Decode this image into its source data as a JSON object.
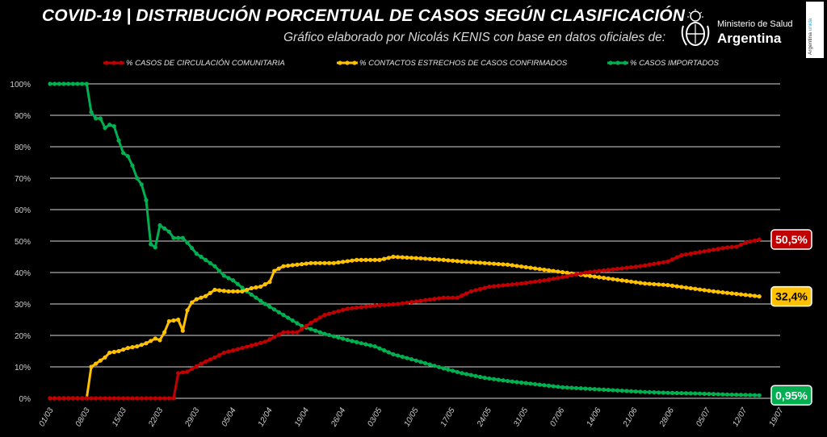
{
  "header": {
    "title": "COVID-19  |  DISTRIBUCIÓN PORCENTUAL DE CASOS SEGÚN CLASIFICACIÓN",
    "subtitle": "Gráfico elaborado por Nicolás KENIS con base en datos oficiales de:"
  },
  "logo": {
    "ministry": "Ministerio de Salud",
    "country": "Argentina",
    "icon": "coat-of-arms-icon"
  },
  "side_tag": {
    "text": "Argentina ",
    "highlight": "unida"
  },
  "colors": {
    "red": "#c00000",
    "yellow": "#ffc000",
    "green": "#00b050",
    "grid": "#d9d9d9"
  },
  "chart_data": {
    "type": "line",
    "x_ticks": [
      "01/03",
      "08/03",
      "15/03",
      "22/03",
      "29/03",
      "05/04",
      "12/04",
      "19/04",
      "26/04",
      "03/05",
      "10/05",
      "17/05",
      "24/05",
      "31/05",
      "07/06",
      "14/06",
      "21/06",
      "28/06",
      "05/07",
      "12/07",
      "19/07"
    ],
    "y_ticks": [
      "0%",
      "10%",
      "20%",
      "30%",
      "40%",
      "50%",
      "60%",
      "70%",
      "80%",
      "90%",
      "100%"
    ],
    "ylim": [
      0,
      100
    ],
    "grid": true,
    "legend_position": "top",
    "series": [
      {
        "name": "% CASOS DE CIRCULACIÓN COMUNITARIA",
        "color": "#c00000",
        "end_label": "50,5%",
        "keyframes": [
          [
            0,
            0
          ],
          [
            27,
            0
          ],
          [
            28,
            8
          ],
          [
            30,
            8.5
          ],
          [
            33,
            11
          ],
          [
            36,
            13
          ],
          [
            38,
            14.5
          ],
          [
            42,
            16
          ],
          [
            47,
            18
          ],
          [
            51,
            21
          ],
          [
            54,
            21
          ],
          [
            57,
            24
          ],
          [
            60,
            26.5
          ],
          [
            65,
            28.5
          ],
          [
            71,
            29.5
          ],
          [
            76,
            30
          ],
          [
            81,
            31
          ],
          [
            86,
            32
          ],
          [
            89,
            32
          ],
          [
            92,
            34
          ],
          [
            96,
            35.5
          ],
          [
            103,
            36.5
          ],
          [
            108,
            37.5
          ],
          [
            113,
            38.8
          ],
          [
            117,
            40
          ],
          [
            123,
            41
          ],
          [
            129,
            42
          ],
          [
            135,
            43.5
          ],
          [
            138,
            45.5
          ],
          [
            144,
            47
          ],
          [
            148,
            48
          ],
          [
            150,
            48.2
          ],
          [
            152,
            49.5
          ],
          [
            155,
            50.5
          ]
        ]
      },
      {
        "name": "% CONTACTOS ESTRECHOS DE CASOS CONFIRMADOS",
        "color": "#ffc000",
        "end_label": "32,4%",
        "keyframes": [
          [
            0,
            0
          ],
          [
            8,
            0
          ],
          [
            9,
            10
          ],
          [
            10,
            11
          ],
          [
            11,
            12
          ],
          [
            12,
            13
          ],
          [
            13,
            14.5
          ],
          [
            15,
            15
          ],
          [
            17,
            16
          ],
          [
            19,
            16.5
          ],
          [
            21,
            17.5
          ],
          [
            23,
            19
          ],
          [
            24,
            18.5
          ],
          [
            25,
            21
          ],
          [
            26,
            24.5
          ],
          [
            28,
            25
          ],
          [
            29,
            21.5
          ],
          [
            30,
            28
          ],
          [
            31,
            30.5
          ],
          [
            32,
            31.5
          ],
          [
            34,
            32.5
          ],
          [
            36,
            34.5
          ],
          [
            39,
            34
          ],
          [
            42,
            34
          ],
          [
            44,
            35
          ],
          [
            46,
            35.5
          ],
          [
            48,
            37
          ],
          [
            49,
            40.5
          ],
          [
            51,
            42
          ],
          [
            54,
            42.5
          ],
          [
            57,
            43
          ],
          [
            62,
            43
          ],
          [
            67,
            44
          ],
          [
            72,
            44
          ],
          [
            75,
            45
          ],
          [
            81,
            44.5
          ],
          [
            86,
            44
          ],
          [
            90,
            43.5
          ],
          [
            95,
            43
          ],
          [
            100,
            42.5
          ],
          [
            105,
            41.5
          ],
          [
            110,
            40.5
          ],
          [
            115,
            39.5
          ],
          [
            120,
            38.5
          ],
          [
            125,
            37.5
          ],
          [
            130,
            36.5
          ],
          [
            135,
            36
          ],
          [
            140,
            35
          ],
          [
            145,
            34
          ],
          [
            150,
            33.2
          ],
          [
            155,
            32.4
          ]
        ]
      },
      {
        "name": "% CASOS IMPORTADOS",
        "color": "#00b050",
        "end_label": "0,95%",
        "keyframes": [
          [
            0,
            100
          ],
          [
            8,
            100
          ],
          [
            9,
            91
          ],
          [
            10,
            89
          ],
          [
            11,
            89
          ],
          [
            12,
            86
          ],
          [
            13,
            87
          ],
          [
            14,
            86.5
          ],
          [
            15,
            82
          ],
          [
            16,
            78
          ],
          [
            17,
            77
          ],
          [
            18,
            74
          ],
          [
            19,
            70
          ],
          [
            20,
            68
          ],
          [
            21,
            63
          ],
          [
            22,
            49
          ],
          [
            23,
            48
          ],
          [
            24,
            55
          ],
          [
            26,
            53
          ],
          [
            27,
            51
          ],
          [
            29,
            51
          ],
          [
            30,
            49.5
          ],
          [
            32,
            46
          ],
          [
            34,
            44
          ],
          [
            36,
            42
          ],
          [
            38,
            39
          ],
          [
            40,
            37.5
          ],
          [
            43,
            34
          ],
          [
            47,
            30
          ],
          [
            51,
            26.5
          ],
          [
            55,
            23
          ],
          [
            60,
            20.5
          ],
          [
            66,
            18.2
          ],
          [
            71,
            16.5
          ],
          [
            75,
            14
          ],
          [
            80,
            12
          ],
          [
            86,
            9.5
          ],
          [
            90,
            8
          ],
          [
            95,
            6.5
          ],
          [
            100,
            5.5
          ],
          [
            106,
            4.5
          ],
          [
            112,
            3.5
          ],
          [
            118,
            3
          ],
          [
            124,
            2.5
          ],
          [
            130,
            2
          ],
          [
            136,
            1.7
          ],
          [
            142,
            1.5
          ],
          [
            148,
            1.2
          ],
          [
            155,
            0.95
          ]
        ]
      }
    ]
  }
}
